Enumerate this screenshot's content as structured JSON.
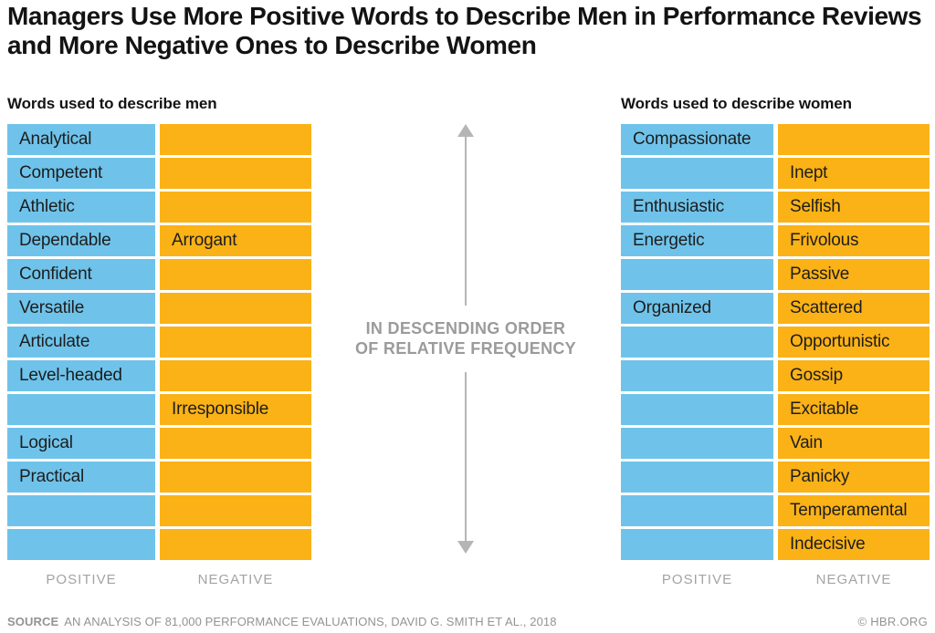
{
  "chart_data": {
    "type": "table",
    "title": "Managers Use More Positive Words to Describe Men in Performance Reviews and More Negative Ones to Describe Women",
    "annotation": {
      "line1": "IN DESCENDING ORDER",
      "line2": "OF RELATIVE FREQUENCY"
    },
    "layout_note": "two side-by-side two-column word tables, rows sorted top-to-bottom in descending order of relative frequency",
    "colors": {
      "positive_cell": "#6fc3ea",
      "negative_cell": "#fbb216",
      "annotation_gray": "#9b9b9b",
      "column_label_gray": "#a3a3a3",
      "arrow_gray": "#b5b5b5",
      "footer_gray": "#939393",
      "title_black": "#131313"
    },
    "tables": [
      {
        "id": "men",
        "header": "Words used to describe men",
        "column_labels": {
          "positive": "POSITIVE",
          "negative": "NEGATIVE"
        },
        "rows": [
          {
            "positive": "Analytical",
            "negative": ""
          },
          {
            "positive": "Competent",
            "negative": ""
          },
          {
            "positive": "Athletic",
            "negative": ""
          },
          {
            "positive": "Dependable",
            "negative": "Arrogant"
          },
          {
            "positive": "Confident",
            "negative": ""
          },
          {
            "positive": "Versatile",
            "negative": ""
          },
          {
            "positive": "Articulate",
            "negative": ""
          },
          {
            "positive": "Level-headed",
            "negative": ""
          },
          {
            "positive": "",
            "negative": "Irresponsible"
          },
          {
            "positive": "Logical",
            "negative": ""
          },
          {
            "positive": "Practical",
            "negative": ""
          },
          {
            "positive": "",
            "negative": ""
          },
          {
            "positive": "",
            "negative": ""
          }
        ]
      },
      {
        "id": "women",
        "header": "Words used to describe women",
        "column_labels": {
          "positive": "POSITIVE",
          "negative": "NEGATIVE"
        },
        "rows": [
          {
            "positive": "Compassionate",
            "negative": ""
          },
          {
            "positive": "",
            "negative": "Inept"
          },
          {
            "positive": "Enthusiastic",
            "negative": "Selfish"
          },
          {
            "positive": "Energetic",
            "negative": "Frivolous"
          },
          {
            "positive": "",
            "negative": "Passive"
          },
          {
            "positive": "Organized",
            "negative": "Scattered"
          },
          {
            "positive": "",
            "negative": "Opportunistic"
          },
          {
            "positive": "",
            "negative": "Gossip"
          },
          {
            "positive": "",
            "negative": "Excitable"
          },
          {
            "positive": "",
            "negative": "Vain"
          },
          {
            "positive": "",
            "negative": "Panicky"
          },
          {
            "positive": "",
            "negative": "Temperamental"
          },
          {
            "positive": "",
            "negative": "Indecisive"
          }
        ]
      }
    ]
  },
  "footer": {
    "source_label": "SOURCE",
    "source_text": "AN ANALYSIS OF 81,000 PERFORMANCE EVALUATIONS, DAVID G. SMITH ET AL., 2018",
    "credit": "© HBR.ORG"
  }
}
